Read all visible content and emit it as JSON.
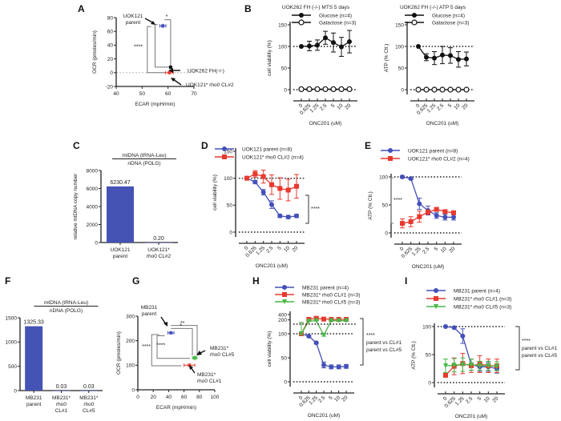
{
  "colors": {
    "blue": "#4450b8",
    "red": "#e8392e",
    "green": "#45b848",
    "black": "#111111",
    "bar": "#4553b5"
  },
  "chart_data": [
    {
      "panel": "A",
      "type": "scatter",
      "xlabel": "ECAR (mpH/min)",
      "ylabel": "OCR (pmoles/min)",
      "xlim": [
        40,
        70
      ],
      "ylim": [
        -20,
        80
      ],
      "xticks": [
        "40",
        "50",
        "60",
        "70"
      ],
      "yticks": [
        "-20",
        "0",
        "20",
        "40",
        "60",
        "80"
      ],
      "points": [
        {
          "name": "UOK121 parent",
          "x": 58,
          "y": 68,
          "xerr": 1.2,
          "yerr": 3,
          "color": "blue",
          "label": [
            "UOK121",
            "parent"
          ]
        },
        {
          "name": "UOK262 FH(-/-)",
          "x": 61,
          "y": 8,
          "xerr": 0.4,
          "yerr": 1,
          "color": "black",
          "label": [
            "UOK262 FH(-/-)"
          ]
        },
        {
          "name": "UOK121* rho0 CL#2",
          "x": 60.5,
          "y": 0,
          "xerr": 1.5,
          "yerr": 1,
          "color": "red",
          "label": [
            "UOK121* rho0 CL#2"
          ]
        }
      ],
      "significance": [
        "*",
        "****"
      ]
    },
    {
      "panel": "B",
      "type": "line",
      "title": "UOK262 FH (-/-) MTS 5 days",
      "xlabel": "ONC201 (uM)",
      "ylabel": "cell viability (%)",
      "categories": [
        "0",
        "0.625",
        "1.25",
        "2.5",
        "5",
        "10",
        "20"
      ],
      "ylim": [
        0,
        150
      ],
      "yticks": [
        "0",
        "50",
        "100",
        "150"
      ],
      "series": [
        {
          "name": "Glucose (n=4)",
          "marker": "filled-circle",
          "color": "black",
          "values": [
            100,
            101,
            103,
            120,
            109,
            99,
            111
          ],
          "errors": [
            0,
            11,
            12,
            15,
            22,
            22,
            26
          ]
        },
        {
          "name": "Galactose (n=3)",
          "marker": "open-circle",
          "color": "black",
          "values": [
            1,
            1,
            1,
            1,
            1,
            1,
            1
          ],
          "errors": [
            0,
            0,
            0,
            0,
            0,
            0,
            0
          ]
        }
      ]
    },
    {
      "panel": "B2",
      "type": "line",
      "title": "UOK262 FH (-/-) ATP 5 days",
      "xlabel": "ONC201 (uM)",
      "ylabel": "ATP (% Ctl.)",
      "categories": [
        "0",
        "0.625",
        "1.25",
        "2.5",
        "5",
        "10",
        "20"
      ],
      "ylim": [
        0,
        150
      ],
      "yticks": [
        "0",
        "50",
        "100",
        "150"
      ],
      "series": [
        {
          "name": "Glucose (n=4)",
          "marker": "filled-circle",
          "color": "black",
          "values": [
            100,
            75,
            73,
            80,
            79,
            70,
            71
          ],
          "errors": [
            0,
            8,
            15,
            20,
            18,
            18,
            16
          ]
        },
        {
          "name": "Galactose (n=3)",
          "marker": "open-circle",
          "color": "black",
          "values": [
            0,
            0,
            0,
            0,
            0,
            0,
            0
          ],
          "errors": [
            0,
            0,
            0,
            0,
            0,
            0,
            0
          ]
        }
      ]
    },
    {
      "panel": "C",
      "type": "bar",
      "title": [
        "mtDNA (tRNA-Leu)",
        "nDNA (POLG)"
      ],
      "ylabel": "relative mtDNA copy number",
      "categories": [
        [
          "UOK121",
          "parent"
        ],
        [
          "UOK121*",
          "rho0 CL#2"
        ]
      ],
      "values": [
        6230.47,
        0.2
      ],
      "value_labels": [
        "6230.47",
        "0.20"
      ],
      "ylim": [
        0,
        8000
      ],
      "yticks": [
        "0",
        "2000",
        "4000",
        "6000",
        "8000"
      ]
    },
    {
      "panel": "D",
      "type": "line",
      "xlabel": "ONC201 (uM)",
      "ylabel": "cell viability (%)",
      "categories": [
        "0",
        "0.625",
        "1.25",
        "2.5",
        "5",
        "10",
        "20"
      ],
      "ylim": [
        0,
        150
      ],
      "yticks": [
        "0",
        "50",
        "100",
        "150"
      ],
      "series": [
        {
          "name": "UOK121 parent (n=8)",
          "marker": "circle",
          "color": "blue",
          "values": [
            100,
            93,
            74,
            51,
            30,
            28,
            30
          ],
          "errors": [
            0,
            3,
            5,
            7,
            3,
            3,
            3
          ]
        },
        {
          "name": "UOK121* rho0 CL#2 (n=4)",
          "marker": "square",
          "color": "red",
          "values": [
            100,
            108,
            103,
            88,
            81,
            78,
            85
          ],
          "errors": [
            0,
            6,
            12,
            18,
            20,
            20,
            22
          ]
        }
      ],
      "significance": [
        "****"
      ]
    },
    {
      "panel": "E",
      "type": "line",
      "xlabel": "ONC201 (uM)",
      "ylabel": "ATP (% Ctl.)",
      "categories": [
        "0",
        "0.625",
        "1.25",
        "2.5",
        "5",
        "10",
        "20"
      ],
      "ylim": [
        0,
        100
      ],
      "yticks": [
        "0",
        "50",
        "100"
      ],
      "series": [
        {
          "name": "UOK121 parent (n=8)",
          "marker": "circle",
          "color": "blue",
          "values": [
            100,
            97,
            52,
            40,
            31,
            28,
            28
          ],
          "errors": [
            2,
            2,
            10,
            8,
            5,
            5,
            5
          ]
        },
        {
          "name": "UOK121* rho0 CL#2 (n=4)",
          "marker": "square",
          "color": "red",
          "values": [
            17,
            20,
            29,
            37,
            42,
            38,
            36
          ],
          "errors": [
            8,
            9,
            10,
            4,
            3,
            3,
            3
          ]
        }
      ],
      "significance": [
        "****"
      ]
    },
    {
      "panel": "F",
      "type": "bar",
      "title": [
        "mtDNA (tRNA-Leu)",
        "nDNA (POLG)"
      ],
      "ylabel": "relative mtDNA copy number",
      "categories": [
        [
          "MB231",
          "parent"
        ],
        [
          "MB231*",
          "rho0",
          "CL#1"
        ],
        [
          "MB231*",
          "rho0",
          "CL#5"
        ]
      ],
      "values": [
        1325.33,
        0.03,
        0.03
      ],
      "value_labels": [
        "1325.33",
        "0.03",
        "0.03"
      ],
      "ylim": [
        0,
        1500
      ],
      "yticks": [
        "0",
        "500",
        "1000",
        "1500"
      ]
    },
    {
      "panel": "G",
      "type": "scatter",
      "xlabel": "ECAR (mpH/min)",
      "ylabel": "OCR (pmoles/min)",
      "xlim": [
        0,
        100
      ],
      "ylim": [
        0,
        300
      ],
      "xticks": [
        "0",
        "20",
        "40",
        "60",
        "80",
        "100"
      ],
      "yticks": [
        "0",
        "100",
        "200",
        "300"
      ],
      "points": [
        {
          "name": "MB231 parent",
          "x": 43,
          "y": 232,
          "xerr": 4,
          "yerr": 6,
          "color": "blue",
          "label": [
            "MB231",
            "parent"
          ]
        },
        {
          "name": "MB231* rho0 CL#5",
          "x": 74,
          "y": 130,
          "xerr": 3,
          "yerr": 10,
          "color": "green",
          "label": [
            "MB231*",
            "rho0 CL#5"
          ]
        },
        {
          "name": "MB231* rho0 CL#1",
          "x": 67,
          "y": 100,
          "xerr": 7,
          "yerr": 4,
          "color": "red",
          "label": [
            "MB231*",
            "rho0 CL#1"
          ]
        }
      ],
      "significance": [
        "**",
        "*",
        "****",
        "****"
      ]
    },
    {
      "panel": "H",
      "type": "line",
      "xlabel": "ONC201 (uM)",
      "ylabel": "cell viability (%)",
      "categories": [
        "0",
        "0.625",
        "1.25",
        "2.5",
        "5",
        "10",
        "20"
      ],
      "ylim_lower": [
        0,
        100
      ],
      "ylim_upper": [
        100,
        400
      ],
      "yticks": [
        "0",
        "50",
        "100",
        "200",
        "400"
      ],
      "series": [
        {
          "name": "MB231 parent (n=4)",
          "marker": "circle",
          "color": "blue",
          "values": [
            100,
            95,
            81,
            35,
            31,
            31,
            32
          ],
          "errors": [
            2,
            2,
            2,
            6,
            4,
            4,
            4
          ]
        },
        {
          "name": "MB231* rho0 CL#1 (n=3)",
          "marker": "square",
          "color": "red",
          "values": [
            100,
            220,
            260,
            230,
            220,
            220,
            220
          ],
          "errors": [
            2,
            40,
            60,
            40,
            20,
            20,
            20
          ]
        },
        {
          "name": "MB231* rho0 CL#5 (n=3)",
          "marker": "triangle-down",
          "color": "green",
          "values": [
            100,
            150,
            170,
            97,
            170,
            170,
            170
          ],
          "errors": [
            2,
            10,
            10,
            2,
            10,
            10,
            10
          ]
        }
      ],
      "significance": [
        "****",
        "parent vs CL#1",
        "parent vs CL#5"
      ]
    },
    {
      "panel": "I",
      "type": "line",
      "xlabel": "ONC201 (uM)",
      "ylabel": "ATP (% Ctl.)",
      "categories": [
        "0",
        "0.625",
        "1.25",
        "2.5",
        "5",
        "10",
        "20"
      ],
      "ylim": [
        0,
        100
      ],
      "yticks": [
        "0",
        "50",
        "100"
      ],
      "series": [
        {
          "name": "MB231 parent (n=4)",
          "marker": "circle",
          "color": "blue",
          "values": [
            100,
            98,
            83,
            32,
            28,
            28,
            25
          ],
          "errors": [
            1,
            1,
            13,
            10,
            8,
            8,
            8
          ]
        },
        {
          "name": "MB231* rho0 CL#1 (n=3)",
          "marker": "square",
          "color": "red",
          "values": [
            13,
            29,
            34,
            30,
            33,
            30,
            30
          ],
          "errors": [
            3,
            15,
            18,
            12,
            15,
            12,
            12
          ]
        },
        {
          "name": "MB231* rho0 CL#5 (n=3)",
          "marker": "triangle-down",
          "color": "green",
          "values": [
            30,
            31,
            32,
            32,
            30,
            30,
            29
          ],
          "errors": [
            12,
            12,
            12,
            10,
            8,
            8,
            8
          ]
        }
      ],
      "significance": [
        "****",
        "parent vs CL#1",
        "parent vs CL#5"
      ]
    }
  ]
}
